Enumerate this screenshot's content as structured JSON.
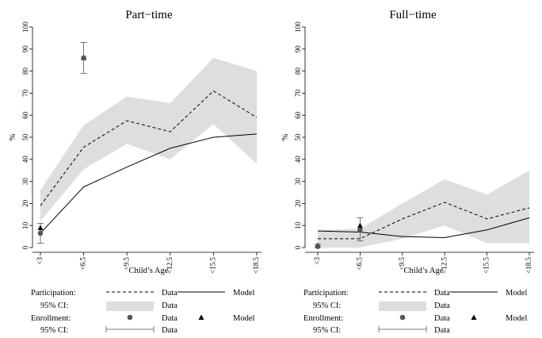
{
  "chart_data": [
    {
      "type": "line",
      "title": "Part−time",
      "xlabel": "Child’s Age",
      "ylabel": "%",
      "ylim": [
        0,
        100
      ],
      "yticks": [
        "0",
        "10",
        "20",
        "30",
        "40",
        "50",
        "60",
        "70",
        "80",
        "90",
        "100"
      ],
      "categories": [
        "<3",
        "<6.5",
        "<9.5",
        "<12.5",
        "<15.5",
        "<18.5"
      ],
      "participation_data": [
        19,
        45.5,
        57.5,
        52.5,
        71,
        59
      ],
      "participation_ci_lower": [
        12,
        35.5,
        47,
        40,
        56,
        38
      ],
      "participation_ci_upper": [
        26,
        55.5,
        68.5,
        65.5,
        86,
        80
      ],
      "participation_model": [
        6.5,
        27.5,
        36.5,
        45,
        50,
        51.5
      ],
      "enrollment": [
        {
          "category": "<3",
          "data": 6.5,
          "ci": [
            2,
            11
          ],
          "model": 9
        },
        {
          "category": "<6.5",
          "data": 86,
          "ci": [
            79,
            93
          ],
          "model": 86
        }
      ]
    },
    {
      "type": "line",
      "title": "Full−time",
      "xlabel": "Child’s Age",
      "ylabel": "%",
      "ylim": [
        0,
        100
      ],
      "yticks": [
        "0",
        "10",
        "20",
        "30",
        "40",
        "50",
        "60",
        "70",
        "80",
        "90",
        "100"
      ],
      "categories": [
        "<3",
        "<6.5",
        "<9.5",
        "<12.5",
        "<15.5",
        "<18.5"
      ],
      "participation_data": [
        4,
        4,
        13,
        20.5,
        13,
        18
      ],
      "participation_ci_lower": [
        0,
        0,
        4,
        10,
        2,
        2
      ],
      "participation_ci_upper": [
        8,
        8.5,
        20,
        31,
        24,
        35
      ],
      "participation_model": [
        7.5,
        7,
        5,
        4.5,
        8,
        13.5
      ],
      "enrollment": [
        {
          "category": "<3",
          "data": 0.5,
          "ci": [
            0,
            1.5
          ],
          "model": 1
        },
        {
          "category": "<6.5",
          "data": 8,
          "ci": [
            3,
            13.5
          ],
          "model": 10
        }
      ]
    }
  ],
  "legend": {
    "participation_label": "Participation:",
    "ci_label": "95% CI:",
    "enrollment_label": "Enrollment:",
    "data_label": "Data",
    "model_label": "Model"
  },
  "colors": {
    "ci_band": "#dedede",
    "enrollment_data": "#555555",
    "line": "#000000"
  }
}
